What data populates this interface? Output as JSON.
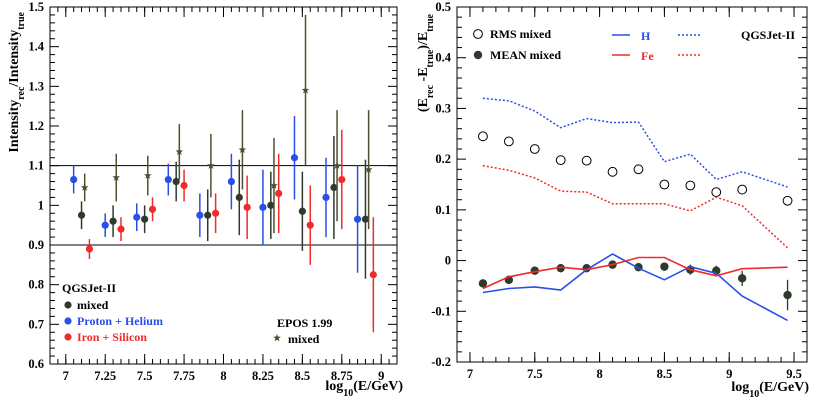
{
  "colors": {
    "black": "#2e3a2c",
    "blue": "#2a4ee8",
    "red": "#ef2b2b",
    "olive": "#4f4f2e"
  },
  "chart_data": [
    {
      "type": "scatter",
      "xlabel": "log10(E/GeV)",
      "ylabel": "Intensity_rec/Intensity_true",
      "xlim": [
        6.9,
        9.1
      ],
      "ylim": [
        0.6,
        1.5
      ],
      "xticks": [
        "7",
        "7.25",
        "7.5",
        "7.75",
        "8",
        "8.25",
        "8.5",
        "8.75",
        "9"
      ],
      "yticks": [
        "0.6",
        "0.7",
        "0.8",
        "0.9",
        "1",
        "1.1",
        "1.2",
        "1.3",
        "1.4",
        "1.5"
      ],
      "reference_lines": [
        0.9,
        1.1
      ],
      "legend": {
        "model": "QGSJet-II",
        "entries": [
          "mixed",
          "Proton + Helium",
          "Iron + Silicon"
        ]
      },
      "legend2": {
        "model": "EPOS 1.99",
        "entries": [
          "mixed"
        ]
      },
      "series": [
        {
          "name": "mixed",
          "color": "black",
          "marker": "circle",
          "x": [
            7.1,
            7.3,
            7.5,
            7.7,
            7.9,
            8.1,
            8.3,
            8.5,
            8.7,
            8.9
          ],
          "y": [
            0.975,
            0.96,
            0.965,
            1.06,
            0.975,
            1.02,
            1.0,
            0.985,
            1.045,
            0.965
          ],
          "err": [
            0.035,
            0.04,
            0.035,
            0.05,
            0.065,
            0.095,
            0.085,
            0.1,
            0.13,
            0.15
          ]
        },
        {
          "name": "Proton + Helium",
          "color": "blue",
          "marker": "circle",
          "x": [
            7.05,
            7.25,
            7.45,
            7.65,
            7.85,
            8.05,
            8.25,
            8.45,
            8.65,
            8.85
          ],
          "y": [
            1.065,
            0.95,
            0.97,
            1.065,
            0.975,
            1.06,
            0.995,
            1.12,
            1.02,
            0.965
          ],
          "err": [
            0.035,
            0.03,
            0.035,
            0.04,
            0.055,
            0.07,
            0.095,
            0.105,
            0.1,
            0.135
          ]
        },
        {
          "name": "Iron + Silicon",
          "color": "red",
          "marker": "circle",
          "x": [
            7.15,
            7.35,
            7.55,
            7.75,
            7.95,
            8.15,
            8.35,
            8.55,
            8.75,
            8.95
          ],
          "y": [
            0.89,
            0.94,
            0.99,
            1.05,
            0.98,
            0.995,
            1.03,
            0.95,
            1.065,
            0.825
          ],
          "err": [
            0.025,
            0.03,
            0.03,
            0.04,
            0.05,
            0.08,
            0.1,
            0.1,
            0.125,
            0.145
          ]
        },
        {
          "name": "EPOS 1.99 mixed",
          "color": "olive",
          "marker": "star",
          "x": [
            7.12,
            7.32,
            7.52,
            7.72,
            7.92,
            8.12,
            8.32,
            8.52,
            8.72,
            8.92
          ],
          "y": [
            1.045,
            1.07,
            1.075,
            1.135,
            1.1,
            1.14,
            1.05,
            1.29,
            1.1,
            1.09
          ],
          "err": [
            0.035,
            0.06,
            0.05,
            0.07,
            0.08,
            0.1,
            0.12,
            0.19,
            0.14,
            0.15
          ]
        }
      ]
    },
    {
      "type": "line",
      "xlabel": "log10(E/GeV)",
      "ylabel": "(E_rec - E_true)/E_true",
      "xlim": [
        6.9,
        9.6
      ],
      "ylim": [
        -0.2,
        0.5
      ],
      "xticks": [
        "7",
        "7.5",
        "8",
        "8.5",
        "9",
        "9.5"
      ],
      "yticks": [
        "-0.2",
        "-0.1",
        "0",
        "0.1",
        "0.2",
        "0.3",
        "0.4",
        "0.5"
      ],
      "legend": {
        "model": "QGSJet-II",
        "entries": [
          "RMS mixed",
          "MEAN mixed",
          "H",
          "Fe"
        ]
      },
      "x": [
        7.1,
        7.3,
        7.5,
        7.7,
        7.9,
        8.1,
        8.3,
        8.5,
        8.7,
        8.9,
        9.1,
        9.45
      ],
      "series": [
        {
          "name": "RMS mixed",
          "color": "black",
          "marker": "open-circle",
          "values": [
            0.245,
            0.235,
            0.22,
            0.198,
            0.197,
            0.175,
            0.18,
            0.15,
            0.148,
            0.135,
            0.14,
            0.118
          ]
        },
        {
          "name": "MEAN mixed",
          "color": "black",
          "marker": "filled-circle",
          "values": [
            -0.045,
            -0.038,
            -0.02,
            -0.015,
            -0.015,
            -0.008,
            -0.013,
            -0.012,
            -0.018,
            -0.02,
            -0.035,
            -0.068
          ],
          "err": [
            0.008,
            0.008,
            0.008,
            0.008,
            0.008,
            0.008,
            0.008,
            0.008,
            0.01,
            0.01,
            0.015,
            0.03
          ]
        },
        {
          "name": "H",
          "color": "blue",
          "style": "solid",
          "values": [
            -0.063,
            -0.055,
            -0.052,
            -0.058,
            -0.018,
            0.013,
            -0.015,
            -0.038,
            -0.012,
            -0.025,
            -0.07,
            -0.118
          ]
        },
        {
          "name": "H",
          "color": "blue",
          "style": "dotted",
          "values": [
            0.32,
            0.315,
            0.295,
            0.262,
            0.28,
            0.272,
            0.273,
            0.195,
            0.21,
            0.16,
            0.175,
            0.145
          ]
        },
        {
          "name": "Fe",
          "color": "red",
          "style": "solid",
          "values": [
            -0.055,
            -0.032,
            -0.022,
            -0.013,
            -0.018,
            -0.008,
            0.006,
            0.006,
            -0.018,
            -0.03,
            -0.016,
            -0.013
          ]
        },
        {
          "name": "Fe",
          "color": "red",
          "style": "dotted",
          "values": [
            0.187,
            0.178,
            0.163,
            0.137,
            0.135,
            0.112,
            0.112,
            0.112,
            0.098,
            0.125,
            0.108,
            0.025
          ]
        }
      ]
    }
  ]
}
